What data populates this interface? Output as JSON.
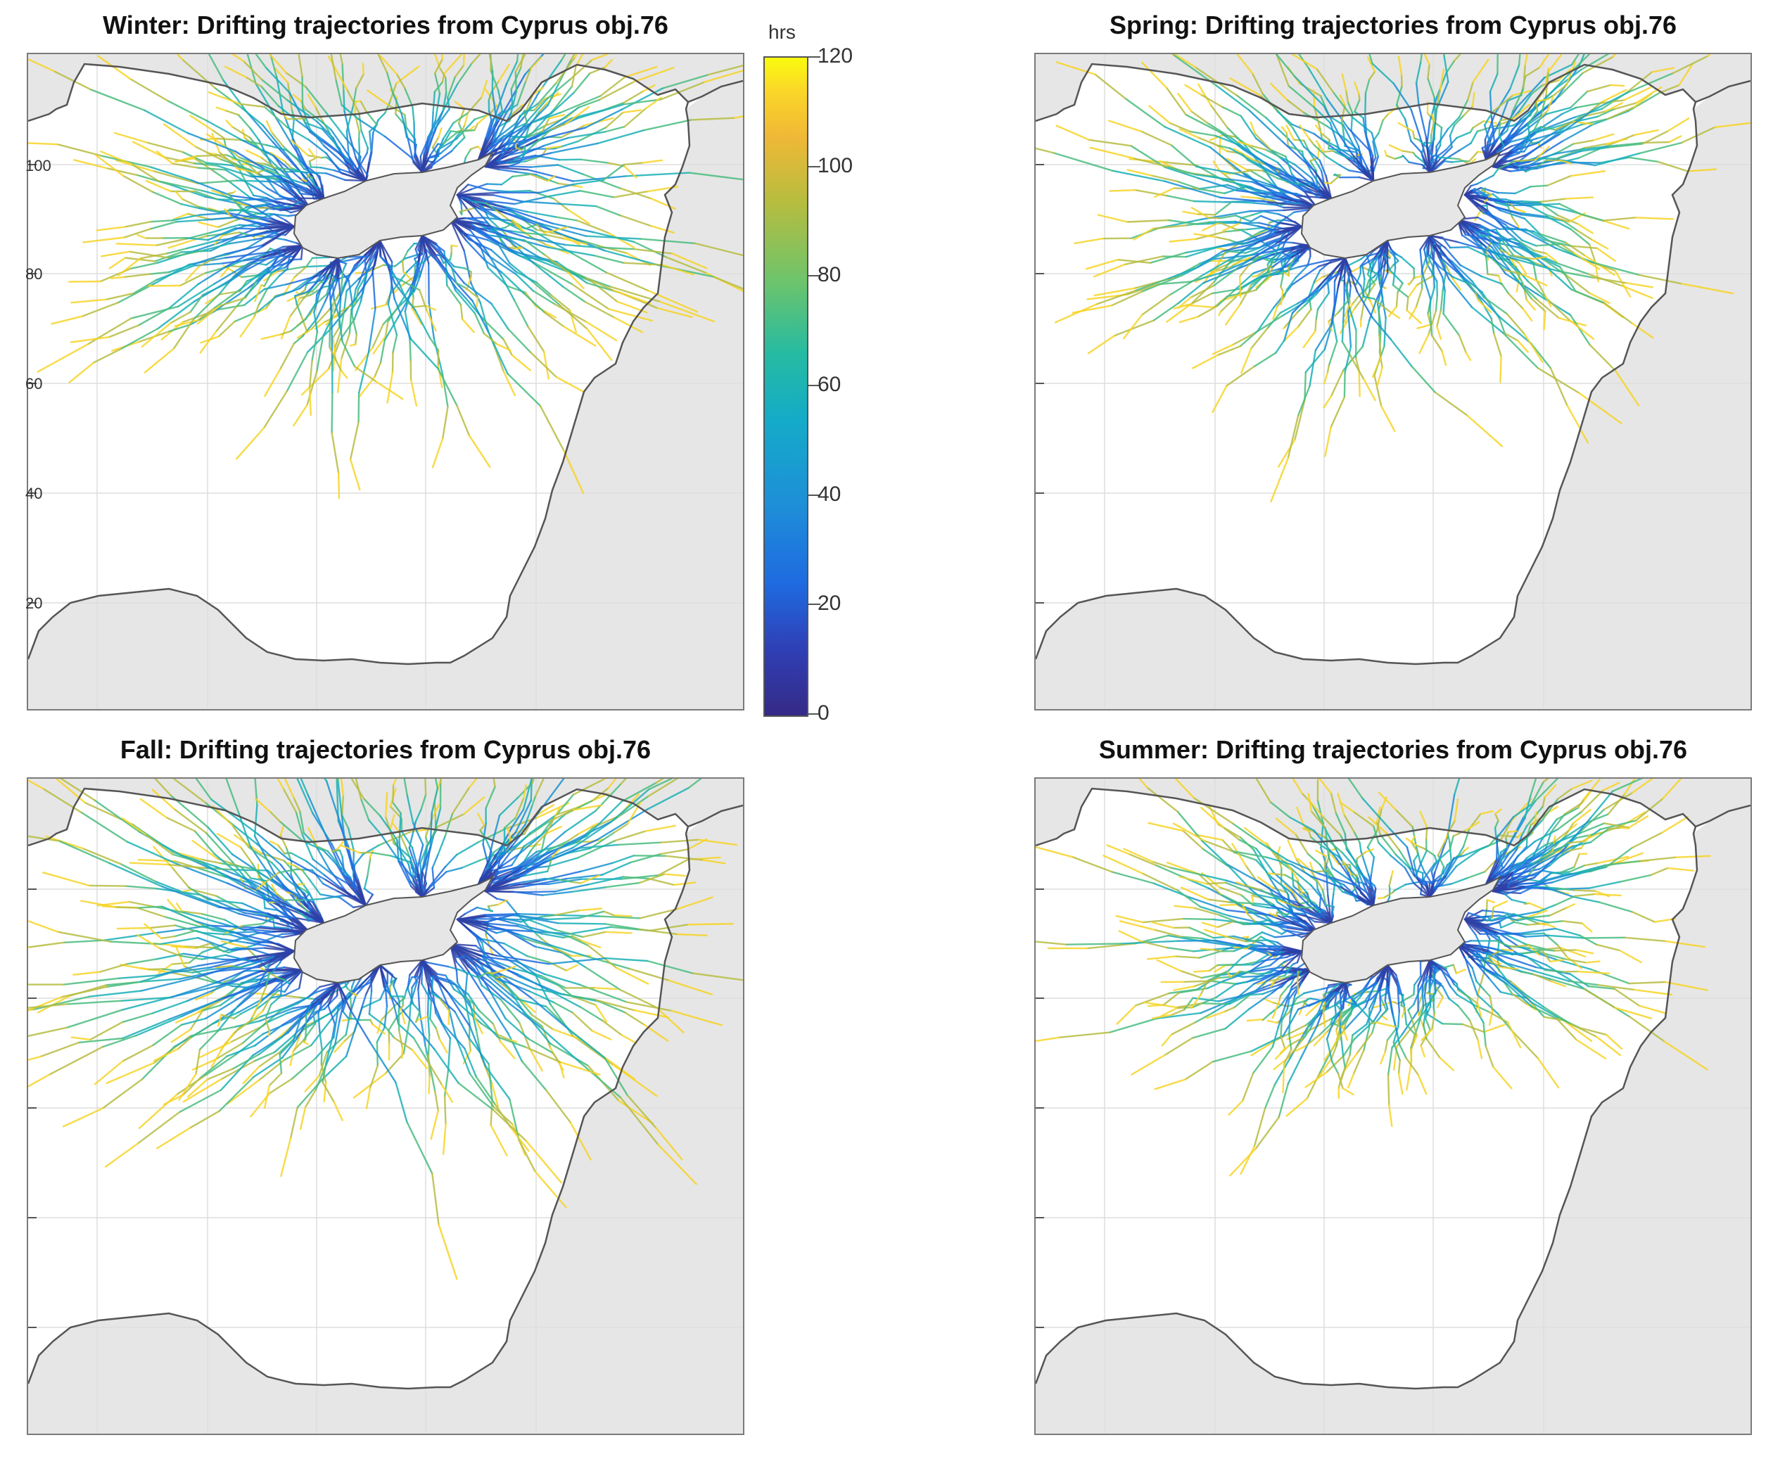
{
  "panels": [
    {
      "id": "winter",
      "title": "Winter: Drifting trajectories from Cyprus obj.76",
      "yticks": [
        "100",
        "80",
        "60",
        "40",
        "20"
      ]
    },
    {
      "id": "spring",
      "title": "Spring: Drifting trajectories from Cyprus obj.76",
      "yticks": []
    },
    {
      "id": "fall",
      "title": "Fall: Drifting trajectories from Cyprus obj.76",
      "yticks": []
    },
    {
      "id": "summer",
      "title": "Summer: Drifting trajectories from Cyprus obj.76",
      "yticks": []
    }
  ],
  "colorbar": {
    "unit": "hrs",
    "ticks": [
      "120",
      "100",
      "80",
      "60",
      "40",
      "20",
      "0"
    ],
    "range": [
      0,
      120
    ]
  },
  "colors": {
    "land": "#e6e6e6",
    "coast": "#555555",
    "grid": "#dddddd",
    "c0": "#352a87",
    "c60": "#14b4bd",
    "c120": "#f9fb0e"
  }
}
